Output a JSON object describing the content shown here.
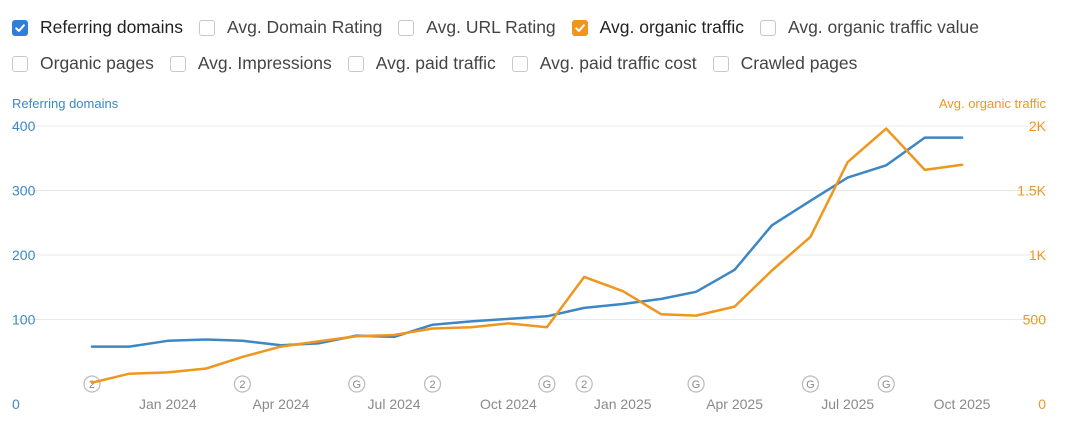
{
  "metrics": {
    "row1": [
      {
        "label": "Referring domains",
        "checked": true,
        "color": "#2f7ed8"
      },
      {
        "label": "Avg. Domain Rating",
        "checked": false
      },
      {
        "label": "Avg. URL Rating",
        "checked": false
      },
      {
        "label": "Avg. organic traffic",
        "checked": true,
        "color": "#f0941a"
      },
      {
        "label": "Avg. organic traffic value",
        "checked": false
      }
    ],
    "row2": [
      {
        "label": "Organic pages",
        "checked": false
      },
      {
        "label": "Avg. Impressions",
        "checked": false
      },
      {
        "label": "Avg. paid traffic",
        "checked": false
      },
      {
        "label": "Avg. paid traffic cost",
        "checked": false
      },
      {
        "label": "Crawled pages",
        "checked": false
      }
    ]
  },
  "colors": {
    "referring": "#3d87c4",
    "traffic": "#ef961f",
    "grid": "#e8e8e8",
    "tick": "#8a8a8a",
    "marker_border": "#bdbdbd"
  },
  "chart_data": {
    "type": "line",
    "left_axis_title": "Referring domains",
    "right_axis_title": "Avg. organic traffic",
    "left_ticks": [
      "0",
      "100",
      "200",
      "300",
      "400"
    ],
    "left_ylim": [
      0,
      400
    ],
    "right_ticks": [
      "0",
      "500",
      "1K",
      "1.5K",
      "2K"
    ],
    "right_ylim": [
      0,
      2000
    ],
    "x_tick_labels": [
      "Jan 2024",
      "Apr 2024",
      "Jul 2024",
      "Oct 2024",
      "Jan 2025",
      "Apr 2025",
      "Jul 2025",
      "Oct 2025"
    ],
    "x_tick_dates": [
      "2024-01-01",
      "2024-04-01",
      "2024-07-01",
      "2024-10-01",
      "2025-01-01",
      "2025-04-01",
      "2025-07-01",
      "2025-10-01"
    ],
    "x_range": [
      "2023-09-25",
      "2025-11-15"
    ],
    "grid": true,
    "series": [
      {
        "name": "Referring domains",
        "axis": "left",
        "points": [
          {
            "x": "2023-11-01",
            "y": 58
          },
          {
            "x": "2023-12-01",
            "y": 58
          },
          {
            "x": "2024-01-01",
            "y": 67
          },
          {
            "x": "2024-02-01",
            "y": 69
          },
          {
            "x": "2024-03-01",
            "y": 67
          },
          {
            "x": "2024-04-01",
            "y": 60
          },
          {
            "x": "2024-05-01",
            "y": 63
          },
          {
            "x": "2024-06-01",
            "y": 75
          },
          {
            "x": "2024-07-01",
            "y": 73
          },
          {
            "x": "2024-08-01",
            "y": 92
          },
          {
            "x": "2024-09-01",
            "y": 97
          },
          {
            "x": "2024-10-01",
            "y": 101
          },
          {
            "x": "2024-11-01",
            "y": 105
          },
          {
            "x": "2024-12-01",
            "y": 118
          },
          {
            "x": "2025-01-01",
            "y": 124
          },
          {
            "x": "2025-02-01",
            "y": 132
          },
          {
            "x": "2025-03-01",
            "y": 143
          },
          {
            "x": "2025-04-01",
            "y": 177
          },
          {
            "x": "2025-05-01",
            "y": 246
          },
          {
            "x": "2025-06-01",
            "y": 284
          },
          {
            "x": "2025-07-01",
            "y": 320
          },
          {
            "x": "2025-08-01",
            "y": 339
          },
          {
            "x": "2025-09-01",
            "y": 382
          },
          {
            "x": "2025-10-01",
            "y": 382
          }
        ]
      },
      {
        "name": "Avg. organic traffic",
        "axis": "right",
        "points": [
          {
            "x": "2023-11-01",
            "y": 10
          },
          {
            "x": "2023-12-01",
            "y": 80
          },
          {
            "x": "2024-01-01",
            "y": 90
          },
          {
            "x": "2024-02-01",
            "y": 120
          },
          {
            "x": "2024-03-01",
            "y": 210
          },
          {
            "x": "2024-04-01",
            "y": 290
          },
          {
            "x": "2024-05-01",
            "y": 330
          },
          {
            "x": "2024-06-01",
            "y": 370
          },
          {
            "x": "2024-07-01",
            "y": 380
          },
          {
            "x": "2024-08-01",
            "y": 430
          },
          {
            "x": "2024-09-01",
            "y": 440
          },
          {
            "x": "2024-10-01",
            "y": 470
          },
          {
            "x": "2024-11-01",
            "y": 440
          },
          {
            "x": "2024-12-01",
            "y": 830
          },
          {
            "x": "2025-01-01",
            "y": 720
          },
          {
            "x": "2025-02-01",
            "y": 540
          },
          {
            "x": "2025-03-01",
            "y": 530
          },
          {
            "x": "2025-04-01",
            "y": 600
          },
          {
            "x": "2025-05-01",
            "y": 880
          },
          {
            "x": "2025-06-01",
            "y": 1140
          },
          {
            "x": "2025-07-01",
            "y": 1720
          },
          {
            "x": "2025-08-01",
            "y": 1980
          },
          {
            "x": "2025-09-01",
            "y": 1660
          },
          {
            "x": "2025-10-01",
            "y": 1700
          }
        ]
      }
    ],
    "annotations": [
      {
        "label": "2",
        "x": "2023-11-01"
      },
      {
        "label": "2",
        "x": "2024-03-01"
      },
      {
        "label": "G",
        "x": "2024-06-01"
      },
      {
        "label": "2",
        "x": "2024-08-01"
      },
      {
        "label": "G",
        "x": "2024-11-01"
      },
      {
        "label": "2",
        "x": "2024-12-01"
      },
      {
        "label": "G",
        "x": "2025-03-01"
      },
      {
        "label": "G",
        "x": "2025-06-01"
      },
      {
        "label": "G",
        "x": "2025-08-01"
      }
    ]
  }
}
